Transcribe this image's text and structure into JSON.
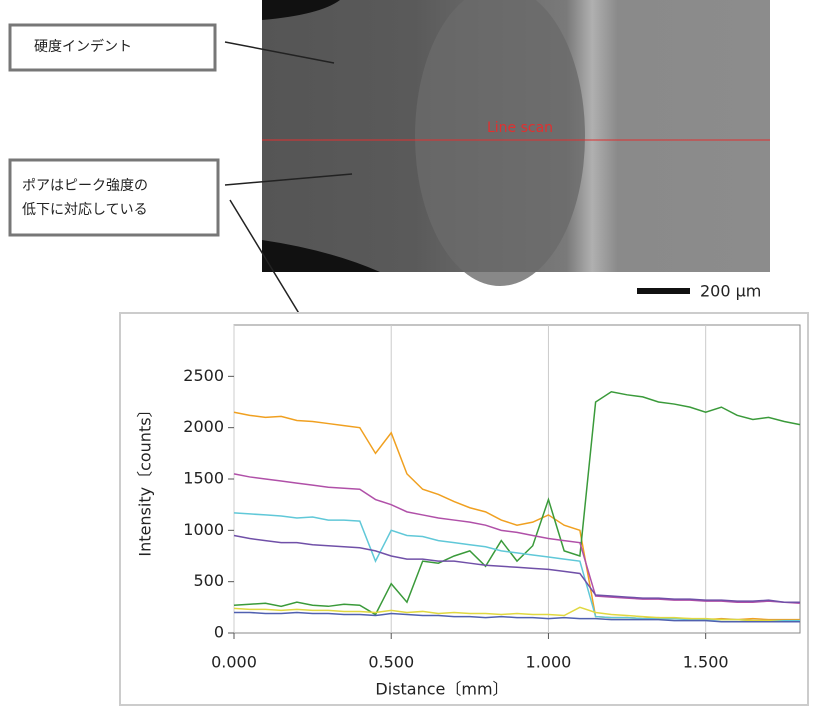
{
  "chart_data": {
    "type": "line",
    "image_label": "Line scan",
    "scale_bar": "200 µm",
    "annotations": [
      [
        "硬度インデント"
      ],
      [
        "ポアはピーク強度の",
        "低下に対応している"
      ]
    ],
    "xlabel": "Distance〔mm〕",
    "ylabel": "Intensity〔counts〕",
    "xlim": [
      0,
      1.8
    ],
    "ylim": [
      0,
      3000
    ],
    "xticks": [
      {
        "value": 0,
        "label": "0.000"
      },
      {
        "value": 0.5,
        "label": "0.500"
      },
      {
        "value": 1,
        "label": "1.000"
      },
      {
        "value": 1.5,
        "label": "1.500"
      }
    ],
    "yticks": [
      0,
      500,
      1000,
      1500,
      2000,
      2500
    ],
    "grid": "x",
    "x": [
      0,
      0.05,
      0.1,
      0.15,
      0.2,
      0.25,
      0.3,
      0.35,
      0.4,
      0.45,
      0.5,
      0.55,
      0.6,
      0.65,
      0.7,
      0.75,
      0.8,
      0.85,
      0.9,
      0.95,
      1,
      1.05,
      1.1,
      1.15,
      1.2,
      1.25,
      1.3,
      1.35,
      1.4,
      1.45,
      1.5,
      1.55,
      1.6,
      1.65,
      1.7,
      1.75,
      1.8
    ],
    "series": [
      {
        "color": "#f0a020",
        "values": [
          2150,
          2120,
          2100,
          2110,
          2070,
          2060,
          2040,
          2020,
          2000,
          1750,
          1950,
          1550,
          1400,
          1350,
          1280,
          1220,
          1180,
          1100,
          1050,
          1080,
          1150,
          1050,
          1000,
          160,
          150,
          150,
          140,
          150,
          140,
          140,
          130,
          140,
          130,
          140,
          130,
          130,
          130
        ]
      },
      {
        "color": "#3a9a3a",
        "values": [
          270,
          280,
          290,
          260,
          300,
          270,
          260,
          280,
          270,
          180,
          480,
          300,
          700,
          680,
          750,
          800,
          650,
          900,
          700,
          850,
          1300,
          800,
          750,
          2250,
          2350,
          2320,
          2300,
          2250,
          2230,
          2200,
          2150,
          2200,
          2120,
          2080,
          2100,
          2060,
          2030
        ]
      },
      {
        "color": "#b050a8",
        "values": [
          1550,
          1520,
          1500,
          1480,
          1460,
          1440,
          1420,
          1410,
          1400,
          1300,
          1250,
          1180,
          1150,
          1120,
          1100,
          1080,
          1050,
          1000,
          980,
          950,
          920,
          900,
          880,
          360,
          350,
          340,
          330,
          330,
          320,
          320,
          310,
          310,
          300,
          300,
          310,
          300,
          290
        ]
      },
      {
        "color": "#60c8d8",
        "values": [
          1170,
          1160,
          1150,
          1140,
          1120,
          1130,
          1100,
          1100,
          1090,
          700,
          1000,
          950,
          940,
          900,
          880,
          860,
          840,
          800,
          780,
          760,
          740,
          720,
          700,
          160,
          150,
          150,
          140,
          140,
          140,
          130,
          130,
          130,
          130,
          120,
          120,
          120,
          120
        ]
      },
      {
        "color": "#7050a8",
        "values": [
          950,
          920,
          900,
          880,
          880,
          860,
          850,
          840,
          830,
          800,
          750,
          720,
          720,
          700,
          700,
          680,
          660,
          650,
          640,
          630,
          620,
          600,
          580,
          370,
          360,
          350,
          340,
          340,
          330,
          330,
          320,
          320,
          310,
          310,
          320,
          300,
          300
        ]
      },
      {
        "color": "#e0d840",
        "values": [
          240,
          230,
          230,
          220,
          230,
          220,
          220,
          210,
          210,
          200,
          220,
          200,
          210,
          190,
          200,
          190,
          190,
          180,
          190,
          180,
          180,
          170,
          250,
          200,
          180,
          170,
          160,
          150,
          150,
          140,
          140,
          130,
          130,
          120,
          120,
          110,
          110
        ]
      },
      {
        "color": "#5060b0",
        "values": [
          200,
          200,
          190,
          190,
          200,
          190,
          190,
          180,
          180,
          170,
          190,
          180,
          170,
          170,
          160,
          160,
          150,
          160,
          150,
          150,
          140,
          150,
          140,
          140,
          130,
          130,
          130,
          130,
          120,
          120,
          120,
          110,
          110,
          110,
          110,
          110,
          110
        ]
      }
    ]
  }
}
